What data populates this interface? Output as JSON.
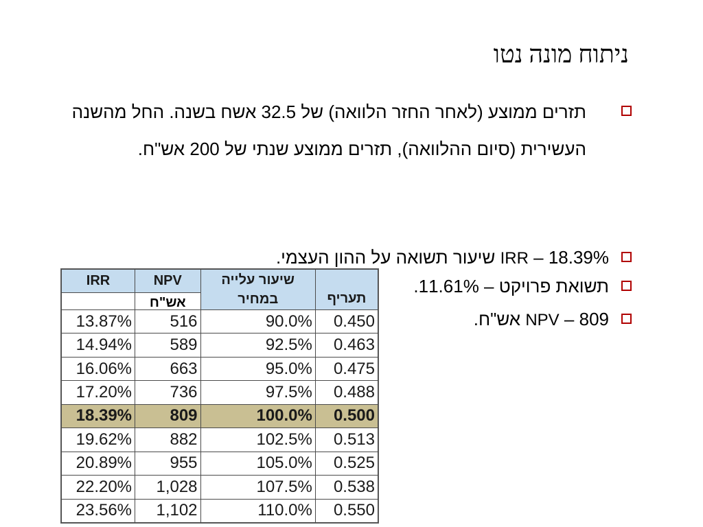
{
  "slide": {
    "title": "ניתוח מונה נטו"
  },
  "bullets": {
    "b1": "תזרים ממוצע (לאחר החזר הלוואה) של 32.5 אשח בשנה. החל מהשנה העשירית (סיום ההלוואה), תזרים ממוצע שנתי של 200 אש\"ח.",
    "b2_en": "IRR",
    "b2_rest": " – 18.39% שיעור תשואה על ההון העצמי.",
    "b3": "תשואת פרויקט – 11.61%.",
    "b4_en": "NPV",
    "b4_rest": " – 809 אש\"ח."
  },
  "table": {
    "headers": {
      "irr": "IRR",
      "npv": "NPV",
      "ratio": "שיעור עלייה במחיר",
      "tariff": "תעריף",
      "npv_unit": "אש\"ח"
    },
    "rows": [
      {
        "irr": "13.87%",
        "npv": "516",
        "ratio": "90.0%",
        "tariff": "0.450"
      },
      {
        "irr": "14.94%",
        "npv": "589",
        "ratio": "92.5%",
        "tariff": "0.463"
      },
      {
        "irr": "16.06%",
        "npv": "663",
        "ratio": "95.0%",
        "tariff": "0.475"
      },
      {
        "irr": "17.20%",
        "npv": "736",
        "ratio": "97.5%",
        "tariff": "0.488"
      },
      {
        "irr": "18.39%",
        "npv": "809",
        "ratio": "100.0%",
        "tariff": "0.500"
      },
      {
        "irr": "19.62%",
        "npv": "882",
        "ratio": "102.5%",
        "tariff": "0.513"
      },
      {
        "irr": "20.89%",
        "npv": "955",
        "ratio": "105.0%",
        "tariff": "0.525"
      },
      {
        "irr": "22.20%",
        "npv": "1,028",
        "ratio": "107.5%",
        "tariff": "0.538"
      },
      {
        "irr": "23.56%",
        "npv": "1,102",
        "ratio": "110.0%",
        "tariff": "0.550"
      }
    ],
    "highlight_row": 4,
    "header_color": "#c5dcef",
    "highlight_color": "#c9bf93"
  },
  "colors": {
    "bullet": "#b00000"
  }
}
